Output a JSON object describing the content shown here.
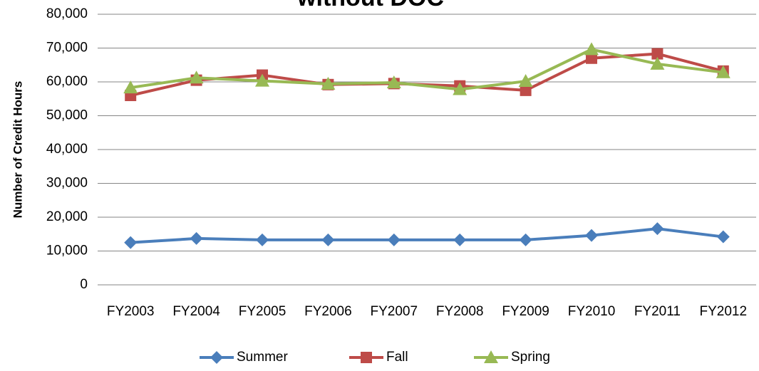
{
  "chart_data": {
    "type": "line",
    "title": "without DOC",
    "y_label": "Number of Credit Hours",
    "categories": [
      "FY2003",
      "FY2004",
      "FY2005",
      "FY2006",
      "FY2007",
      "FY2008",
      "FY2009",
      "FY2010",
      "FY2011",
      "FY2012"
    ],
    "series": [
      {
        "name": "Summer",
        "color": "#4a7ebb",
        "marker": "diamond",
        "values": [
          12500,
          13700,
          13300,
          13300,
          13300,
          13300,
          13300,
          14600,
          16600,
          14200
        ]
      },
      {
        "name": "Fall",
        "color": "#be4b48",
        "marker": "square",
        "values": [
          56000,
          60500,
          62000,
          59200,
          59500,
          58800,
          57500,
          67000,
          68300,
          63200
        ]
      },
      {
        "name": "Spring",
        "color": "#98b954",
        "marker": "triangle",
        "values": [
          58300,
          61200,
          60300,
          59400,
          59800,
          57800,
          60200,
          69600,
          65300,
          62800
        ]
      }
    ],
    "ylim": [
      0,
      80000
    ],
    "yticks": [
      0,
      {
        "value": 10000,
        "label": "10,000"
      },
      {
        "value": 20000,
        "label": "20,000"
      },
      {
        "value": 30000,
        "label": "30,000"
      },
      {
        "value": 40000,
        "label": "40,000"
      },
      {
        "value": 50000,
        "label": "50,000"
      },
      {
        "value": 60000,
        "label": "60,000"
      },
      {
        "value": 70000,
        "label": "70,000"
      },
      {
        "value": 80000,
        "label": "80,000"
      }
    ],
    "grid": true,
    "legend": "bottom"
  }
}
